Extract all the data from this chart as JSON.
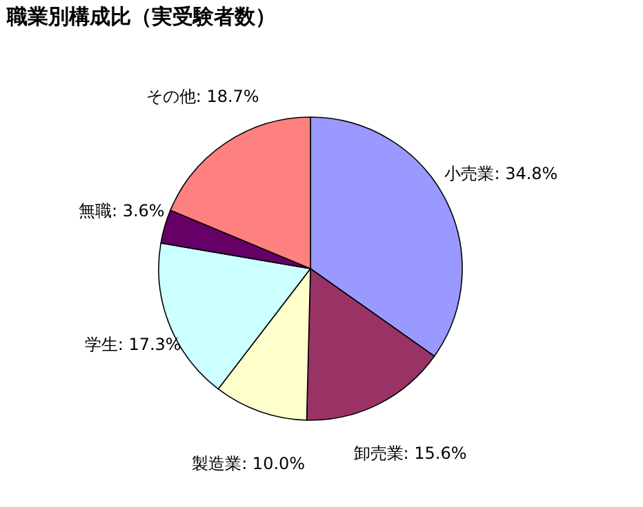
{
  "chart_data": {
    "type": "pie",
    "title": "職業別構成比（実受験者数）",
    "categories": [
      "小売業",
      "卸売業",
      "製造業",
      "学生",
      "無職",
      "その他"
    ],
    "values": [
      34.8,
      15.6,
      10.0,
      17.3,
      3.6,
      18.7
    ],
    "colors": [
      "#9999ff",
      "#993366",
      "#ffffcc",
      "#ccffff",
      "#660066",
      "#ff8080"
    ],
    "value_labels": [
      ": 34.8%",
      ": 15.6%",
      ": 10.0%",
      ": 17.3%",
      ": 3.6%",
      ": 18.7%"
    ],
    "legend": false
  }
}
